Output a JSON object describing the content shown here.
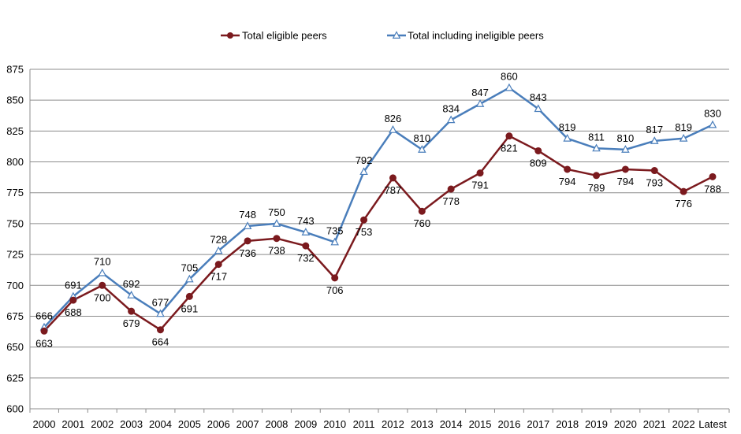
{
  "chart_data": {
    "type": "line",
    "title": "",
    "xlabel": "",
    "ylabel": "",
    "ylim": [
      600,
      875
    ],
    "y_ticks": [
      600,
      625,
      650,
      675,
      700,
      725,
      750,
      775,
      800,
      825,
      850,
      875
    ],
    "grid": true,
    "legend_position": "top-center",
    "categories": [
      "2000",
      "2001",
      "2002",
      "2003",
      "2004",
      "2005",
      "2006",
      "2007",
      "2008",
      "2009",
      "2010",
      "2011",
      "2012",
      "2013",
      "2014",
      "2015",
      "2016",
      "2017",
      "2018",
      "2019",
      "2020",
      "2021",
      "2022",
      "Latest"
    ],
    "series": [
      {
        "name": "Total eligible peers",
        "color": "#7b1a1e",
        "marker": "circle",
        "label_position": "below",
        "values": [
          663,
          688,
          700,
          679,
          664,
          691,
          717,
          736,
          738,
          732,
          706,
          753,
          787,
          760,
          778,
          791,
          821,
          809,
          794,
          789,
          794,
          793,
          776,
          788
        ]
      },
      {
        "name": "Total including ineligible peers",
        "color": "#4a7ebb",
        "marker": "triangle",
        "label_position": "above",
        "values": [
          666,
          691,
          710,
          692,
          677,
          705,
          728,
          748,
          750,
          743,
          735,
          792,
          826,
          810,
          834,
          847,
          860,
          843,
          819,
          811,
          810,
          817,
          819,
          830
        ]
      }
    ]
  }
}
